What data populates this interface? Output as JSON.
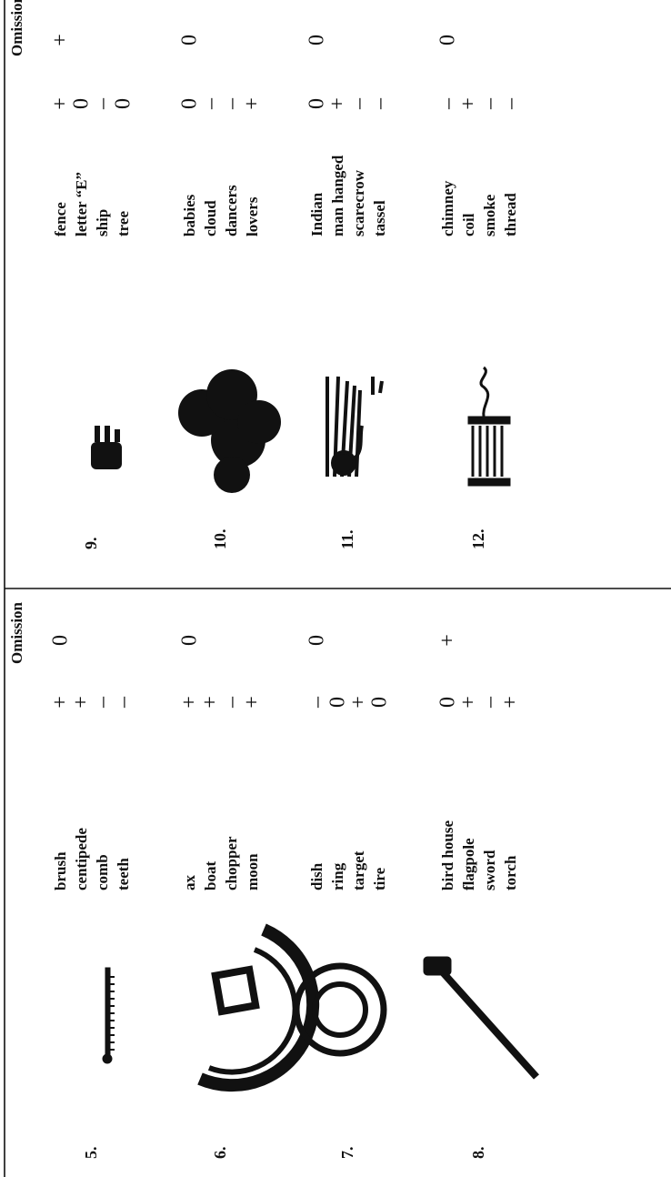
{
  "panels": [
    {
      "header": "Omission",
      "items": [
        {
          "number": "5.",
          "responses": [
            {
              "word": "brush",
              "mark": "+"
            },
            {
              "word": "centipede",
              "mark": "+"
            },
            {
              "word": "comb",
              "mark": "–"
            },
            {
              "word": "teeth",
              "mark": "–"
            }
          ],
          "omission": "0"
        },
        {
          "number": "6.",
          "responses": [
            {
              "word": "ax",
              "mark": "+"
            },
            {
              "word": "boat",
              "mark": "+"
            },
            {
              "word": "chopper",
              "mark": "–"
            },
            {
              "word": "moon",
              "mark": "+"
            }
          ],
          "omission": "0"
        },
        {
          "number": "7.",
          "responses": [
            {
              "word": "dish",
              "mark": "–"
            },
            {
              "word": "ring",
              "mark": "0"
            },
            {
              "word": "target",
              "mark": "+"
            },
            {
              "word": "tire",
              "mark": "0"
            }
          ],
          "omission": "0"
        },
        {
          "number": "8.",
          "responses": [
            {
              "word": "bird house",
              "mark": "0"
            },
            {
              "word": "flagpole",
              "mark": "+"
            },
            {
              "word": "sword",
              "mark": "–"
            },
            {
              "word": "torch",
              "mark": "+"
            }
          ],
          "omission": "+"
        }
      ]
    },
    {
      "header": "Omission",
      "items": [
        {
          "number": "9.",
          "responses": [
            {
              "word": "fence",
              "mark": "+"
            },
            {
              "word": "letter “E”",
              "mark": "0"
            },
            {
              "word": "ship",
              "mark": "–"
            },
            {
              "word": "tree",
              "mark": "0"
            }
          ],
          "omission": "+"
        },
        {
          "number": "10.",
          "responses": [
            {
              "word": "babies",
              "mark": "0"
            },
            {
              "word": "cloud",
              "mark": "–"
            },
            {
              "word": "dancers",
              "mark": "–"
            },
            {
              "word": "lovers",
              "mark": "+"
            }
          ],
          "omission": "0"
        },
        {
          "number": "11.",
          "responses": [
            {
              "word": "Indian",
              "mark": "0"
            },
            {
              "word": "man hanged",
              "mark": "+"
            },
            {
              "word": "scarecrow",
              "mark": "–"
            },
            {
              "word": "tassel",
              "mark": "–"
            }
          ],
          "omission": "0"
        },
        {
          "number": "12.",
          "responses": [
            {
              "word": "chimney",
              "mark": "–"
            },
            {
              "word": "coil",
              "mark": "+"
            },
            {
              "word": "smoke",
              "mark": "–"
            },
            {
              "word": "thread",
              "mark": "–"
            }
          ],
          "omission": "0"
        }
      ]
    }
  ]
}
